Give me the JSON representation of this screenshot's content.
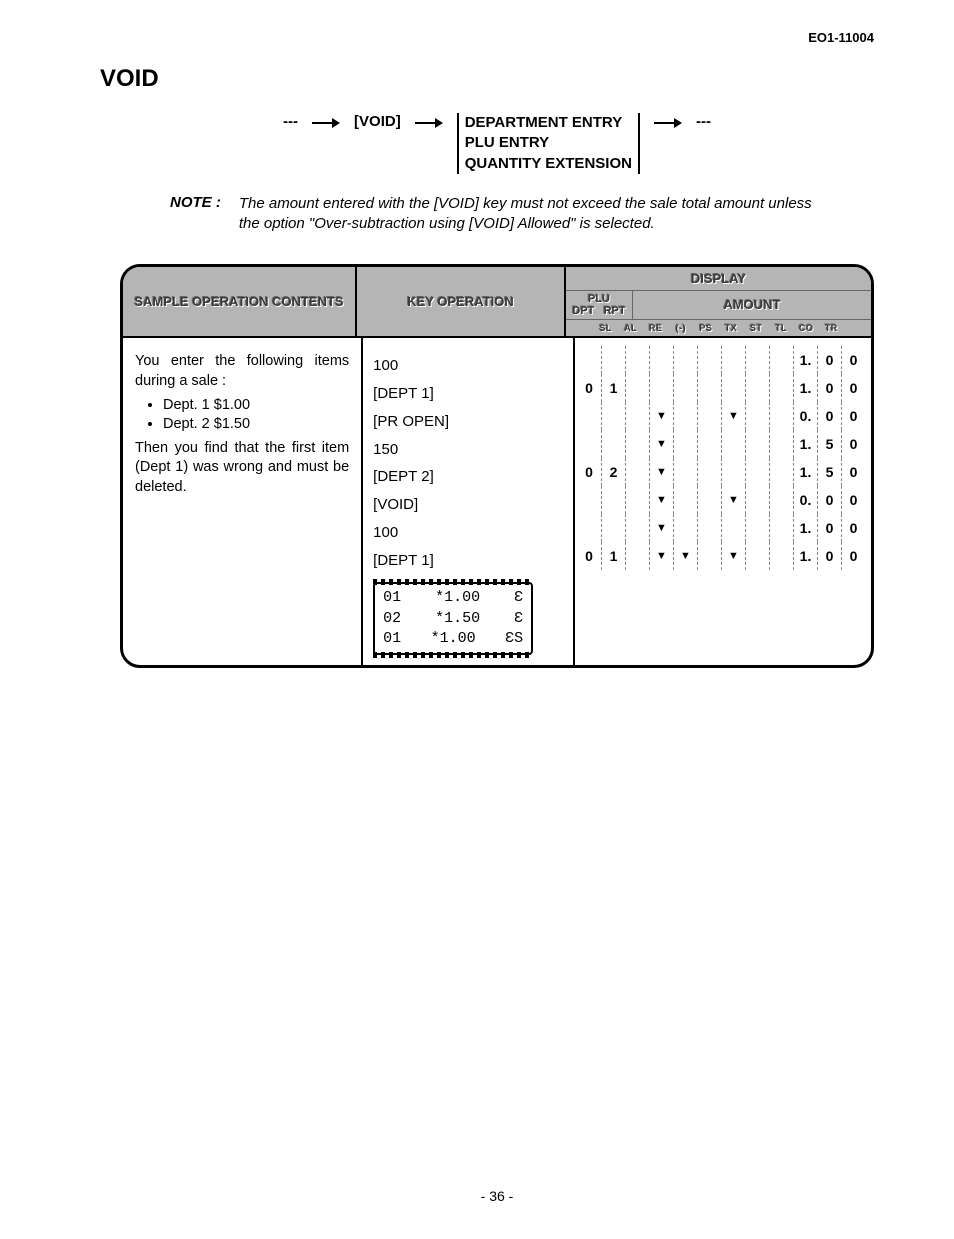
{
  "doc_id": "EO1-11004",
  "title": "VOID",
  "flow": {
    "dash": "---",
    "void": "[VOID]",
    "entries": [
      "DEPARTMENT ENTRY",
      "PLU ENTRY",
      "QUANTITY EXTENSION"
    ]
  },
  "note": {
    "label": "NOTE :",
    "text": "The amount entered with the [VOID] key must not exceed the sale total amount unless the option \"Over-subtraction using [VOID] Allowed\" is selected."
  },
  "headers": {
    "sample": "SAMPLE OPERATION CONTENTS",
    "key": "KEY OPERATION",
    "display": "DISPLAY",
    "plu": "PLU",
    "dpt_rpt": "DPT   RPT",
    "amount": "AMOUNT",
    "tiny": [
      "",
      "SL",
      "AL",
      "RE",
      "(-)",
      "PS",
      "TX",
      "ST",
      "TL",
      "CO",
      "TR",
      ""
    ]
  },
  "sample_body": {
    "intro": "You enter the following items during a sale :",
    "items": [
      "Dept. 1 $1.00",
      "Dept. 2 $1.50"
    ],
    "then": "Then you find that the first item (Dept 1) was wrong and must be deleted."
  },
  "key_ops": [
    "100",
    "[DEPT 1]",
    "[PR OPEN]",
    "150",
    "[DEPT 2]",
    "[VOID]",
    "100",
    "[DEPT 1]"
  ],
  "receipt": [
    {
      "l": "01",
      "m": "*1.00",
      "r": "Ɛ"
    },
    {
      "l": "02",
      "m": "*1.50",
      "r": "Ɛ"
    },
    {
      "l": "01",
      "m": "*1.00",
      "r": "ƐS"
    }
  ],
  "display_rows": [
    [
      "",
      "",
      "",
      "",
      "",
      "",
      "",
      "",
      "",
      "1.",
      "0",
      "0"
    ],
    [
      "0",
      "1",
      "",
      "",
      "",
      "",
      "",
      "",
      "",
      "1.",
      "0",
      "0"
    ],
    [
      "",
      "",
      "",
      "▼",
      "",
      "",
      "▼",
      "",
      "",
      "0.",
      "0",
      "0"
    ],
    [
      "",
      "",
      "",
      "▼",
      "",
      "",
      "",
      "",
      "",
      "1.",
      "5",
      "0"
    ],
    [
      "0",
      "2",
      "",
      "▼",
      "",
      "",
      "",
      "",
      "",
      "1.",
      "5",
      "0"
    ],
    [
      "",
      "",
      "",
      "▼",
      "",
      "",
      "▼",
      "",
      "",
      "0.",
      "0",
      "0"
    ],
    [
      "",
      "",
      "",
      "▼",
      "",
      "",
      "",
      "",
      "",
      "1.",
      "0",
      "0"
    ],
    [
      "0",
      "1",
      "",
      "▼",
      "▼",
      "",
      "▼",
      "",
      "",
      "1.",
      "0",
      "0"
    ]
  ],
  "page_number": "- 36 -",
  "colors": {
    "header_bg": "#b5b5b5",
    "header_text": "#3a3a3a",
    "border": "#000000",
    "dashed": "#888888"
  }
}
